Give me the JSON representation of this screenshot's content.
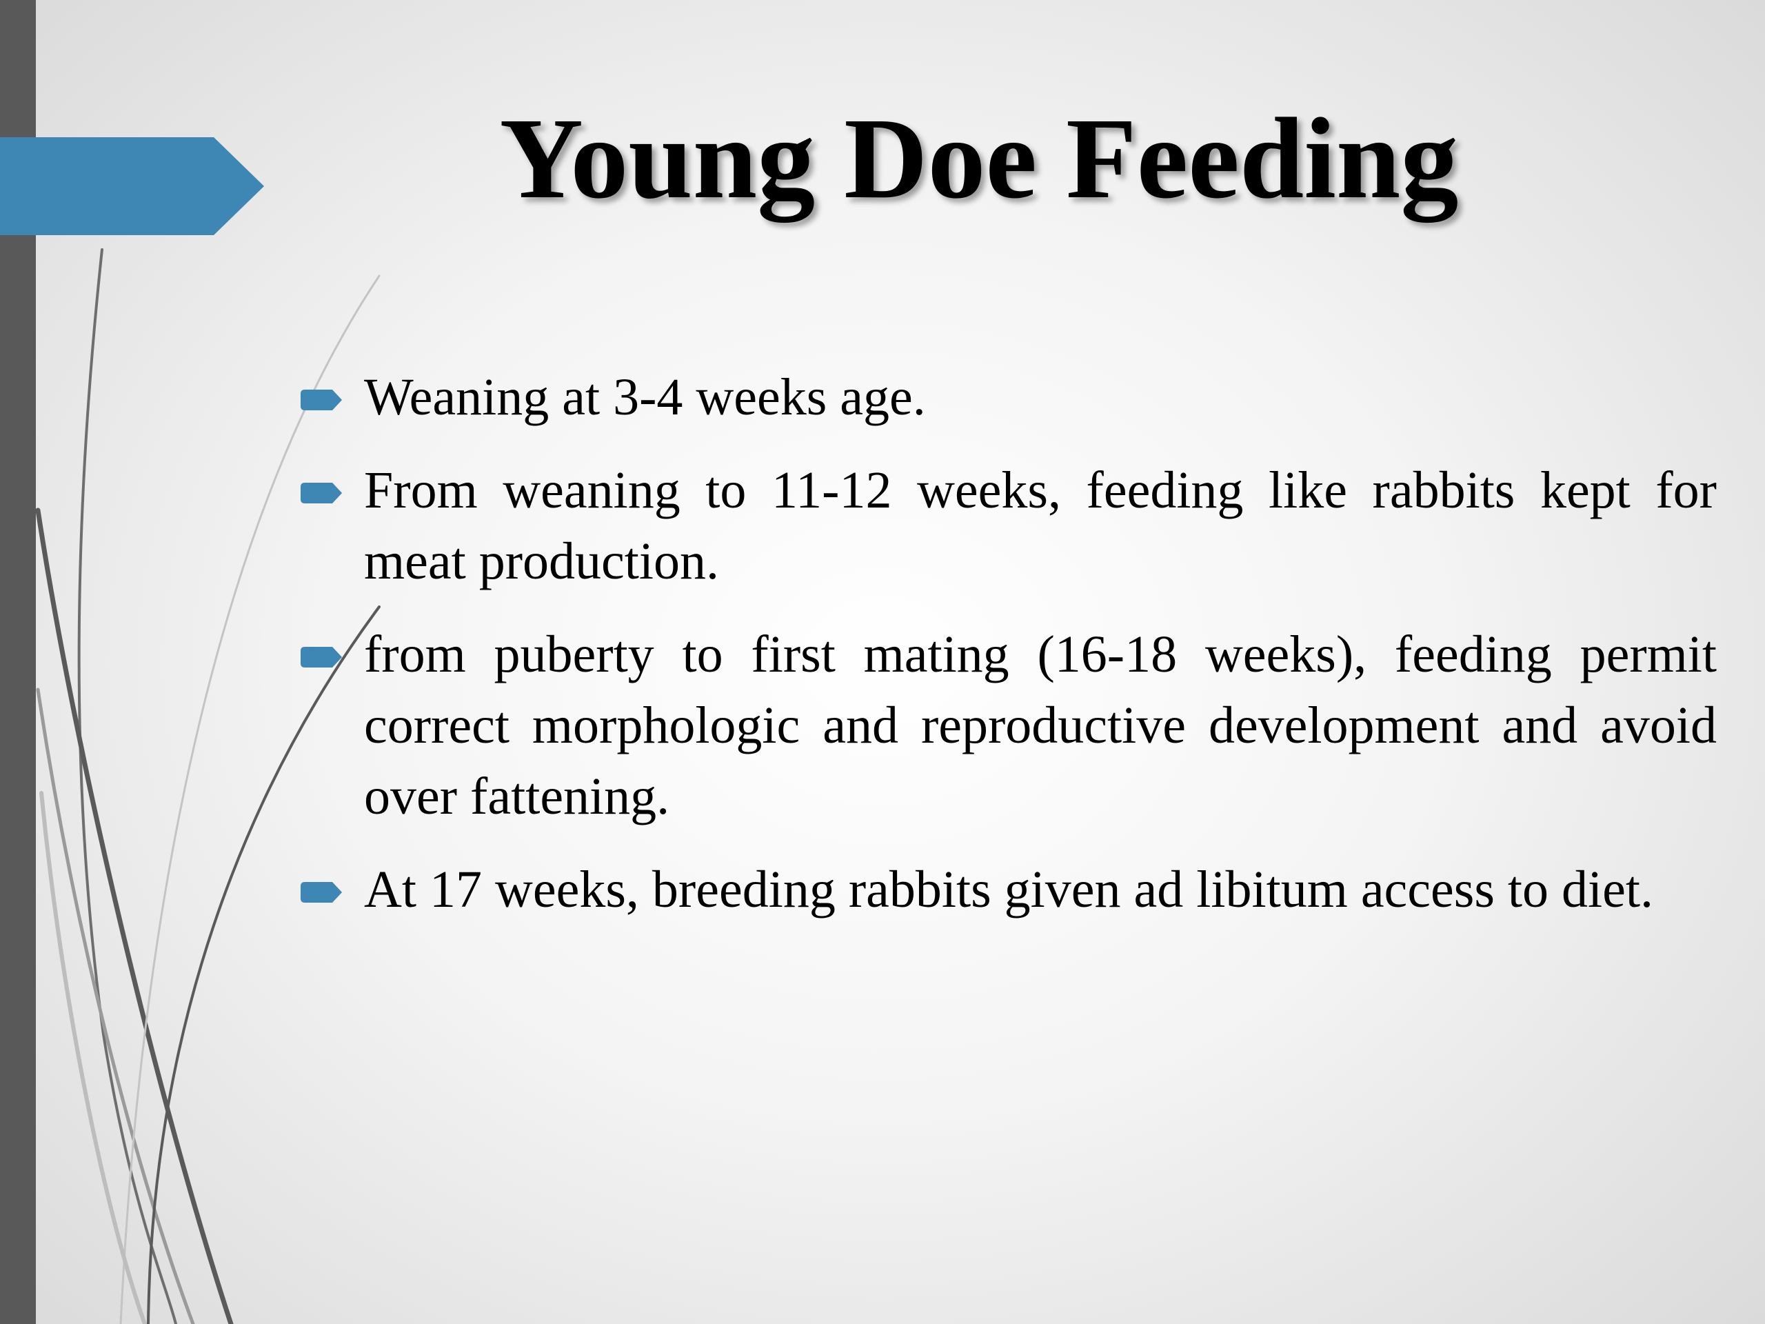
{
  "slide": {
    "title": "Young Doe Feeding",
    "bullets": [
      {
        "text": "Weaning at 3-4 weeks age."
      },
      {
        "text": "From weaning to 11-12 weeks, feeding like rabbits kept for meat production."
      },
      {
        "text": "from puberty to first mating (16-18 weeks), feeding permit correct morphologic and reproductive development and avoid over fattening."
      },
      {
        "text": "At 17 weeks, breeding rabbits given ad libitum access to diet."
      }
    ]
  },
  "theme": {
    "accent": "#3e87b5",
    "sidebar": "#595959",
    "background": "#f4f4f4",
    "bullet_icon": "arrow-right-icon"
  }
}
